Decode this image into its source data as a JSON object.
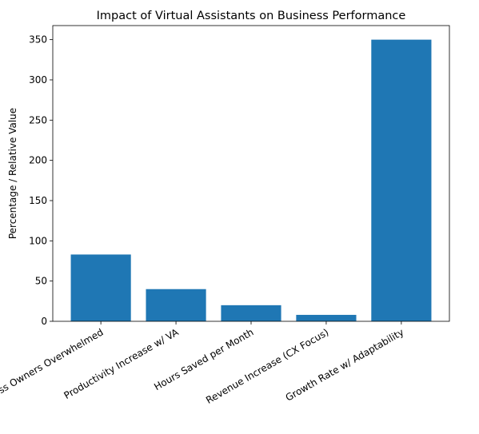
{
  "chart_data": {
    "type": "bar",
    "title": "Impact of Virtual Assistants on Business Performance",
    "y_label": "Percentage / Relative Value",
    "categories": [
      "Business Owners Overwhelmed",
      "Productivity Increase w/ VA",
      "Hours Saved per Month",
      "Revenue Increase (CX Focus)",
      "Growth Rate w/ Adaptability"
    ],
    "values": [
      83,
      40,
      20,
      8,
      350
    ],
    "color": "#1f77b4",
    "ylim": [
      0,
      367.5
    ],
    "yticks": [
      0,
      50,
      100,
      150,
      200,
      250,
      300,
      350
    ],
    "grid": false
  }
}
